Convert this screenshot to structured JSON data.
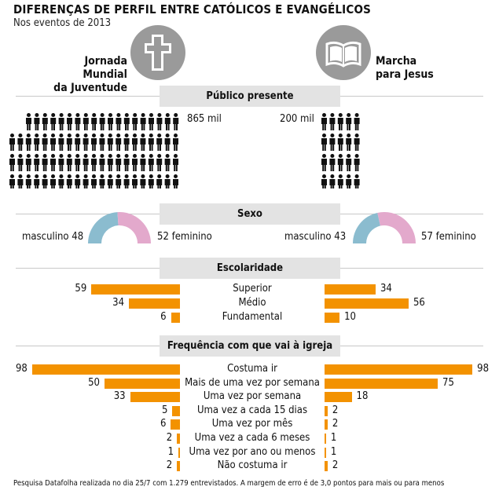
{
  "title": "DIFERENÇAS DE PERFIL ENTRE CATÓLICOS E EVANGÉLICOS",
  "subtitle": "Nos eventos de 2013",
  "events": {
    "left": {
      "line1": "Jornada Mundial",
      "line2": "da Juventude",
      "icon": "cross-icon"
    },
    "right": {
      "line1": "Marcha",
      "line2": "para Jesus",
      "icon": "bible-icon"
    }
  },
  "colors": {
    "bar": "#f39200",
    "masculino": "#8bbccf",
    "feminino": "#e3a9cc",
    "band": "#e3e3e3",
    "icon": "#9a9a9a"
  },
  "chart_data": [
    {
      "type": "pictogram",
      "title": "Público presente",
      "series": [
        {
          "name": "Jornada Mundial da Juventude",
          "label": "865 mil",
          "value": 865
        },
        {
          "name": "Marcha para Jesus",
          "label": "200 mil",
          "value": 200
        }
      ]
    },
    {
      "type": "pie",
      "title": "Sexo",
      "series": [
        {
          "name": "Jornada Mundial da Juventude",
          "slices": [
            {
              "label": "masculino",
              "value": 48
            },
            {
              "label": "feminino",
              "value": 52
            }
          ]
        },
        {
          "name": "Marcha para Jesus",
          "slices": [
            {
              "label": "masculino",
              "value": 43
            },
            {
              "label": "feminino",
              "value": 57
            }
          ]
        }
      ]
    },
    {
      "type": "bar",
      "title": "Escolaridade",
      "categories": [
        "Superior",
        "Médio",
        "Fundamental"
      ],
      "series": [
        {
          "name": "Jornada Mundial da Juventude",
          "values": [
            59,
            34,
            6
          ]
        },
        {
          "name": "Marcha para Jesus",
          "values": [
            34,
            56,
            10
          ]
        }
      ]
    },
    {
      "type": "bar",
      "title": "Frequência com que vai à igreja",
      "categories": [
        "Costuma ir",
        "Mais de uma vez por semana",
        "Uma vez por semana",
        "Uma vez a cada 15 dias",
        "Uma vez por mês",
        "Uma vez a cada 6 meses",
        "Uma vez por ano ou menos",
        "Não costuma ir"
      ],
      "series": [
        {
          "name": "Jornada Mundial da Juventude",
          "values": [
            98,
            50,
            33,
            5,
            6,
            2,
            1,
            2
          ]
        },
        {
          "name": "Marcha para Jesus",
          "values": [
            98,
            75,
            18,
            2,
            2,
            1,
            1,
            2
          ]
        }
      ]
    }
  ],
  "footer": "Pesquisa Datafolha realizada no dia 25/7 com 1.279 entrevistados. A margem de erro é de 3,0 pontos para mais ou para menos"
}
